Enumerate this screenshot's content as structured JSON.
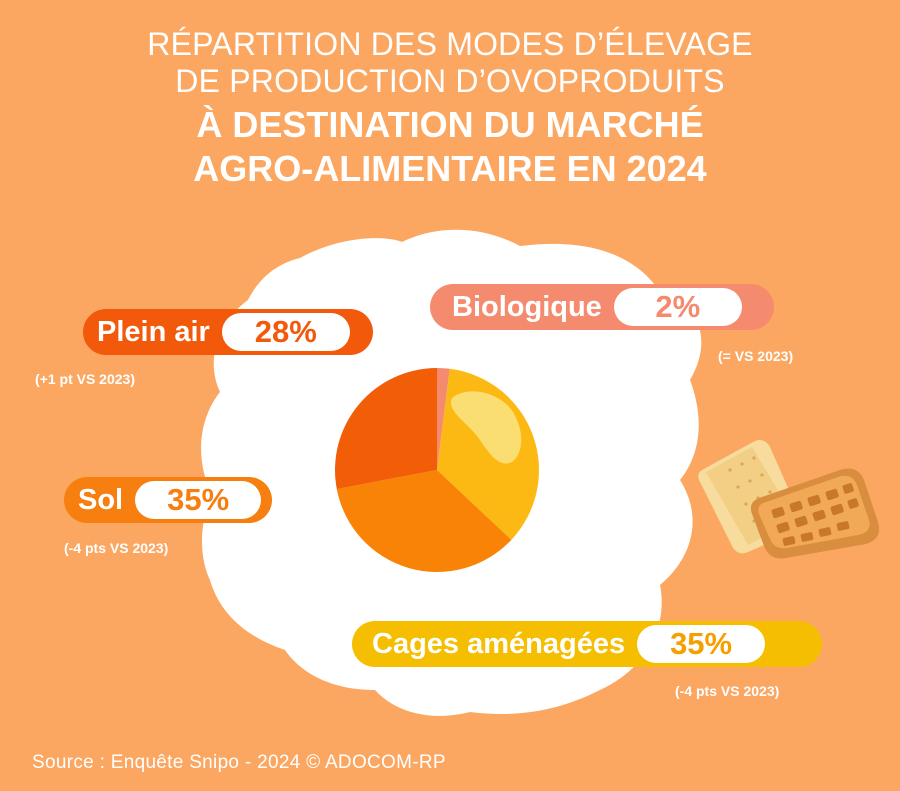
{
  "title": {
    "line1": "RÉPARTITION DES MODES D’ÉLEVAGE",
    "line2": "DE PRODUCTION D’OVOPRODUITS",
    "line3": "À DESTINATION DU MARCHÉ",
    "line4": "AGRO-ALIMENTAIRE EN 2024"
  },
  "chart_data": {
    "type": "pie",
    "slices": [
      {
        "name": "Biologique",
        "value": 2,
        "value_label": "2%",
        "change": "(= VS 2023)",
        "color": "#f48a6e"
      },
      {
        "name": "Cages aménagées",
        "value": 35,
        "value_label": "35%",
        "change": "(-4 pts VS 2023)",
        "color": "#fdb913"
      },
      {
        "name": "Sol",
        "value": 35,
        "value_label": "35%",
        "change": "(-4 pts VS 2023)",
        "color": "#f98307"
      },
      {
        "name": "Plein air",
        "value": 28,
        "value_label": "28%",
        "change": "(+1 pt VS 2023)",
        "color": "#f25e08"
      }
    ],
    "start_angle_deg": 0,
    "direction": "clockwise"
  },
  "colors": {
    "background": "#fba761",
    "egg_white": "#ffffff",
    "yolk_highlight": "#fbe27c"
  },
  "footer": {
    "source": "Source : Enquête Snipo - 2024  © ADOCOM-RP"
  }
}
